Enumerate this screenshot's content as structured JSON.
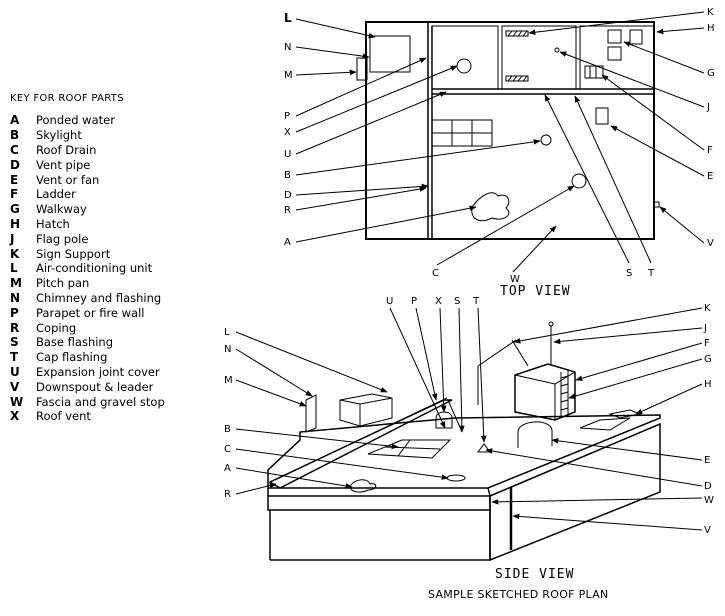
{
  "key": {
    "title": "KEY FOR ROOF PARTS",
    "items": [
      {
        "letter": "A",
        "name": "Ponded water"
      },
      {
        "letter": "B",
        "name": "Skylight"
      },
      {
        "letter": "C",
        "name": "Roof Drain"
      },
      {
        "letter": "D",
        "name": "Vent pipe"
      },
      {
        "letter": "E",
        "name": "Vent or fan"
      },
      {
        "letter": "F",
        "name": "Ladder"
      },
      {
        "letter": "G",
        "name": "Walkway"
      },
      {
        "letter": "H",
        "name": "Hatch"
      },
      {
        "letter": "J",
        "name": "Flag pole"
      },
      {
        "letter": "K",
        "name": "Sign Support"
      },
      {
        "letter": "L",
        "name": "Air-conditioning unit"
      },
      {
        "letter": "M",
        "name": "Pitch pan"
      },
      {
        "letter": "N",
        "name": "Chimney and flashing"
      },
      {
        "letter": "P",
        "name": "Parapet or fire wall"
      },
      {
        "letter": "R",
        "name": "Coping"
      },
      {
        "letter": "S",
        "name": "Base flashing"
      },
      {
        "letter": "T",
        "name": "Cap flashing"
      },
      {
        "letter": "U",
        "name": "Expansion joint cover"
      },
      {
        "letter": "V",
        "name": "Downspout & leader"
      },
      {
        "letter": "W",
        "name": "Fascia and gravel stop"
      },
      {
        "letter": "X",
        "name": "Roof vent"
      }
    ]
  },
  "top_view": {
    "title": "TOP VIEW",
    "labels": {
      "L": "L",
      "N": "N",
      "M": "M",
      "P": "P",
      "X": "X",
      "U": "U",
      "B": "B",
      "D": "D",
      "R": "R",
      "A": "A",
      "C": "C",
      "W": "W",
      "S": "S",
      "T": "T",
      "V": "V",
      "E": "E",
      "F": "F",
      "J": "J",
      "G": "G",
      "H": "H",
      "K": "K"
    }
  },
  "side_view": {
    "title": "SIDE VIEW",
    "labels": {
      "U": "U",
      "P": "P",
      "X": "X",
      "S": "S",
      "T": "T",
      "K": "K",
      "J": "J",
      "L": "L",
      "N": "N",
      "M": "M",
      "F": "F",
      "G": "G",
      "H": "H",
      "B": "B",
      "C": "C",
      "A": "A",
      "R": "R",
      "E": "E",
      "D": "D",
      "W": "W",
      "V": "V"
    }
  },
  "plan_title": "SAMPLE SKETCHED ROOF PLAN"
}
